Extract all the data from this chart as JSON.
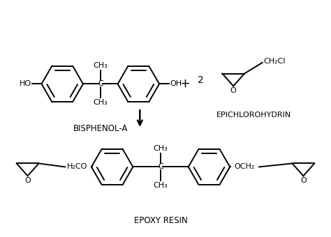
{
  "bg_color": "#ffffff",
  "line_color": "#000000",
  "lw": 1.4,
  "title": "EPOXY RESIN",
  "reactant1_label": "BISPHENOL-A",
  "reactant2_label": "EPICHLOROHYDRIN",
  "font_size_label": 8.5,
  "font_size_atom": 8,
  "font_size_plus": 13
}
